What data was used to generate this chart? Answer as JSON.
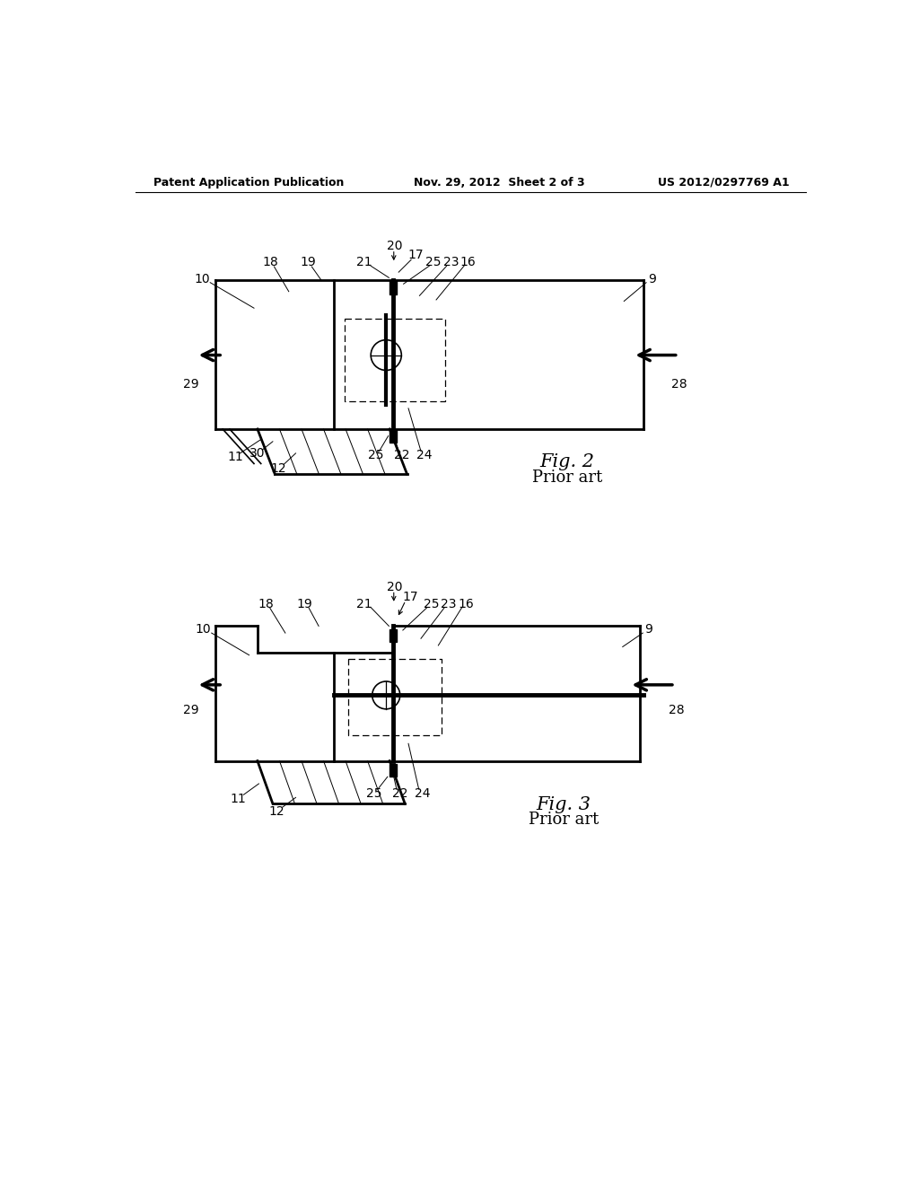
{
  "background_color": "#ffffff",
  "header_left": "Patent Application Publication",
  "header_center": "Nov. 29, 2012  Sheet 2 of 3",
  "header_right": "US 2012/0297769 A1",
  "fig2_title": "Fig. 2",
  "fig2_subtitle": "Prior art",
  "fig3_title": "Fig. 3",
  "fig3_subtitle": "Prior art"
}
